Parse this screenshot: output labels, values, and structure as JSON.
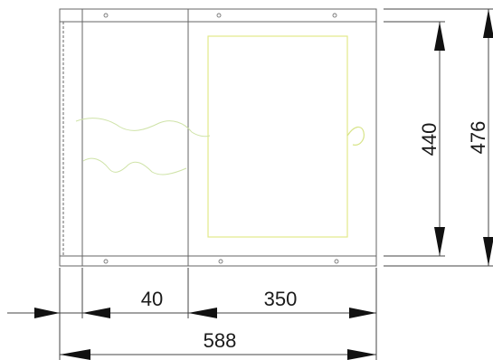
{
  "dimensions": {
    "inner_height": "440",
    "outer_height": "476",
    "left_section_width": "40",
    "right_section_width": "350",
    "overall_width": "588"
  },
  "colors": {
    "frame_line": "#666666",
    "dimension_line": "#444444",
    "arrow": "#111111",
    "panel_outline": "#e8ee8a",
    "wire": "#cfe3a8",
    "background": "#ffffff"
  }
}
